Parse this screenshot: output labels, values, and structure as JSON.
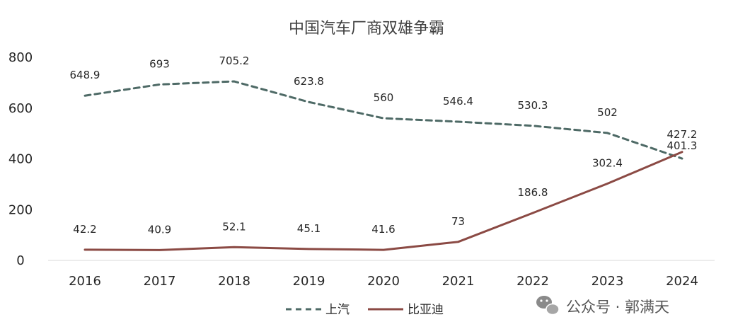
{
  "chart_data": {
    "type": "line",
    "title": "中国汽车厂商双雄争霸",
    "categories": [
      "2016",
      "2017",
      "2018",
      "2019",
      "2020",
      "2021",
      "2022",
      "2023",
      "2024"
    ],
    "series": [
      {
        "name": "上汽",
        "values": [
          648.9,
          693,
          705.2,
          623.8,
          560,
          546.4,
          530.3,
          502,
          401.3
        ],
        "color": "#4e6a66",
        "style": "dashed"
      },
      {
        "name": "比亚迪",
        "values": [
          42.2,
          40.9,
          52.1,
          45.1,
          41.6,
          73,
          186.8,
          302.4,
          427.2
        ],
        "color": "#8b4a44",
        "style": "solid"
      }
    ],
    "ylim": [
      0,
      800
    ],
    "yticks": [
      0,
      200,
      400,
      600,
      800
    ],
    "xlabel": "",
    "ylabel": "",
    "grid": false,
    "legend_position": "bottom"
  },
  "watermark": {
    "text": "公众号 · 郭满天",
    "icon": "wechat-icon"
  }
}
